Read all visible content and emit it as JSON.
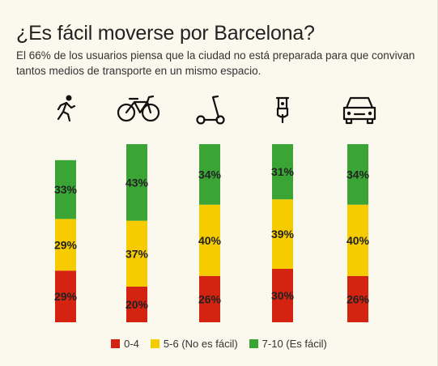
{
  "title": "¿Es fácil moverse por Barcelona?",
  "subtitle": "El 66% de los usuarios piensa que la ciudad no está preparada para que convivan tantos medios de transporte en un mismo espacio.",
  "colors": {
    "red": "#d42411",
    "yellow": "#f6cc00",
    "green": "#3aa535",
    "background": "#fbf8ed"
  },
  "chart_data": {
    "type": "bar",
    "stacked": true,
    "categories": [
      "pedestrian-icon",
      "bicycle-icon",
      "scooter-icon",
      "motorbike-icon",
      "car-icon"
    ],
    "series": [
      {
        "name": "0-4",
        "color": "#d42411",
        "values": [
          29,
          20,
          26,
          30,
          26
        ],
        "labels": [
          "29%",
          "20%",
          "26%",
          "30%",
          "26%"
        ]
      },
      {
        "name": "5-6 (No es fácil)",
        "color": "#f6cc00",
        "values": [
          29,
          37,
          40,
          39,
          40
        ],
        "labels": [
          "29%",
          "37%",
          "40%",
          "39%",
          "40%"
        ]
      },
      {
        "name": "7-10 (Es fácil)",
        "color": "#3aa535",
        "values": [
          33,
          43,
          34,
          31,
          34
        ],
        "labels": [
          "33%",
          "43%",
          "34%",
          "31%",
          "34%"
        ]
      }
    ],
    "legend_position": "bottom"
  }
}
